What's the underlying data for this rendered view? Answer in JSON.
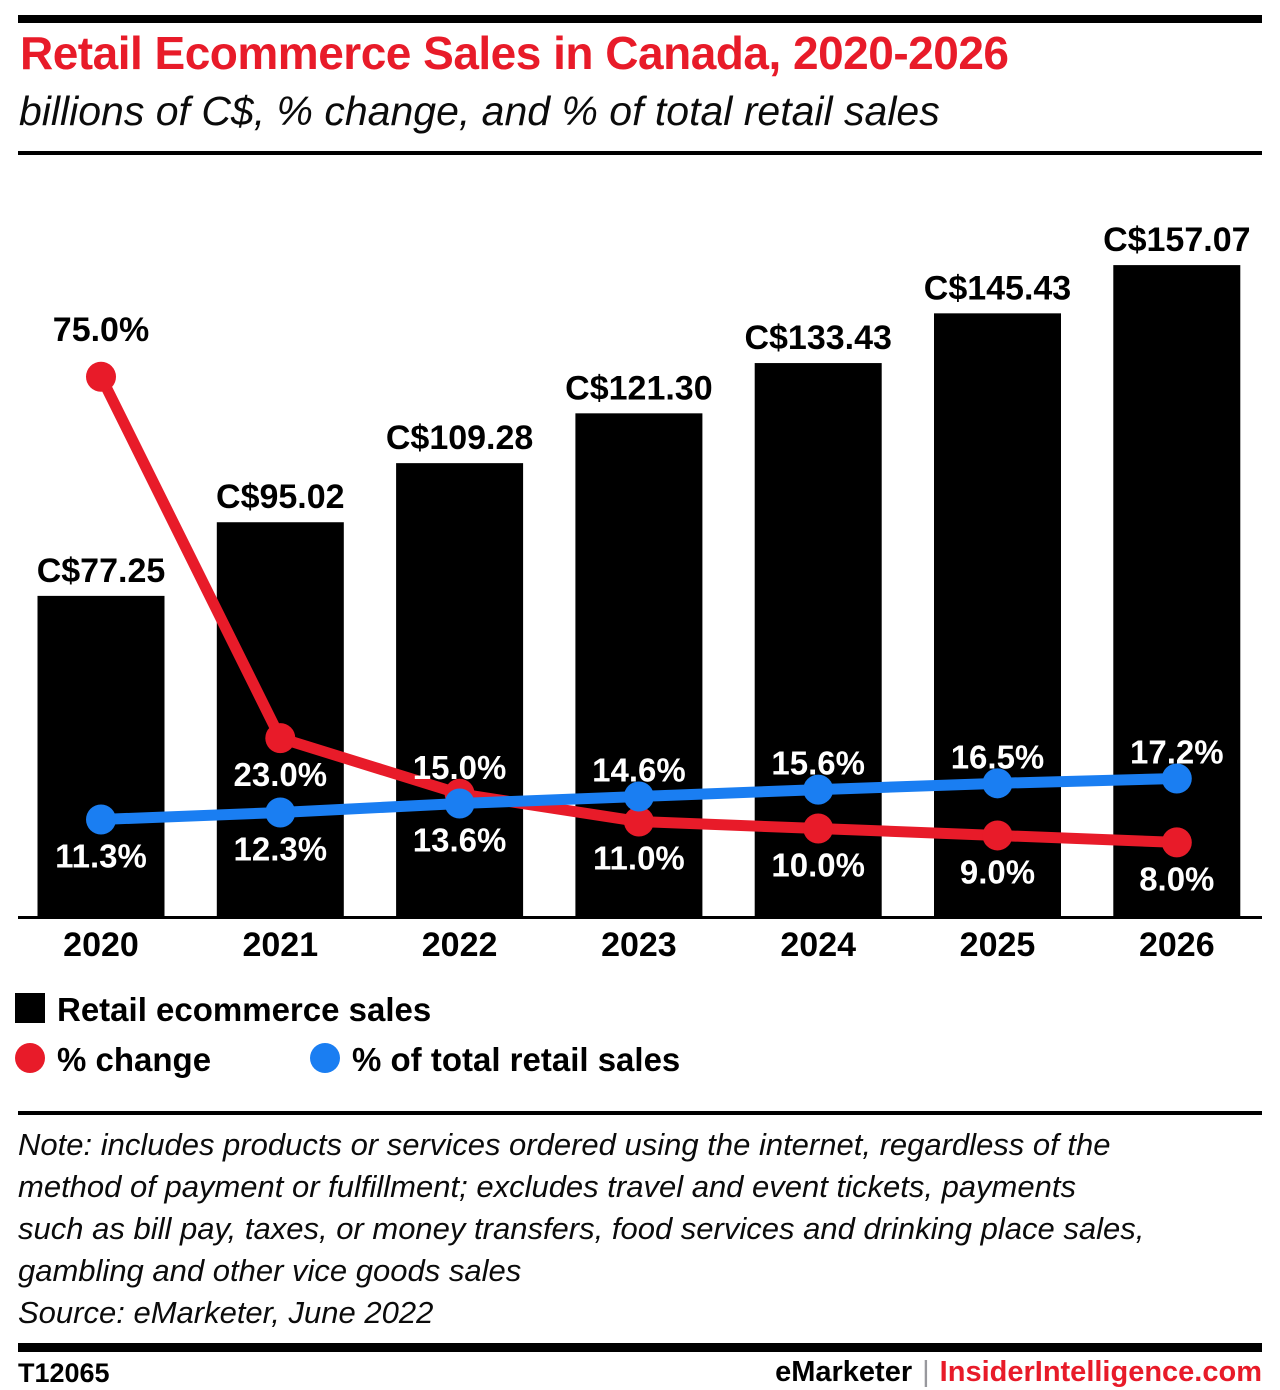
{
  "header": {
    "title": "Retail Ecommerce Sales in Canada, 2020-2026",
    "subtitle": "billions of C$, % change, and % of total retail sales"
  },
  "colors": {
    "bar_black": "#000000",
    "line_red": "#e81b29",
    "line_blue": "#1a7ef2",
    "label_white": "#ffffff"
  },
  "chart_data": {
    "type": "bar",
    "categories": [
      "2020",
      "2021",
      "2022",
      "2023",
      "2024",
      "2025",
      "2026"
    ],
    "series": [
      {
        "name": "Retail ecommerce sales",
        "type": "bar",
        "unit": "billions of C$",
        "color": "#000000",
        "values": [
          77.25,
          95.02,
          109.28,
          121.3,
          133.43,
          145.43,
          157.07
        ],
        "labels": [
          "C$77.25",
          "C$95.02",
          "C$109.28",
          "C$121.30",
          "C$133.43",
          "C$145.43",
          "C$157.07"
        ]
      },
      {
        "name": "% change",
        "type": "line",
        "unit": "%",
        "color": "#e81b29",
        "values": [
          75.0,
          23.0,
          15.0,
          11.0,
          10.0,
          9.0,
          8.0
        ],
        "labels": [
          "75.0%",
          "23.0%",
          "15.0%",
          "11.0%",
          "10.0%",
          "9.0%",
          "8.0%"
        ]
      },
      {
        "name": "% of total retail sales",
        "type": "line",
        "unit": "%",
        "color": "#1a7ef2",
        "values": [
          11.3,
          12.3,
          13.6,
          14.6,
          15.6,
          16.5,
          17.2
        ],
        "labels": [
          "11.3%",
          "12.3%",
          "13.6%",
          "14.6%",
          "15.6%",
          "16.5%",
          "17.2%"
        ]
      }
    ],
    "title": "Retail Ecommerce Sales in Canada, 2020-2026",
    "xlabel": "",
    "ylabel": "",
    "grid": false,
    "legend_position": "bottom"
  },
  "note": {
    "lines": [
      "Note: includes products or services ordered using the internet, regardless of the",
      "method of payment or fulfillment; excludes travel and event tickets, payments",
      "such as bill pay, taxes, or money transfers, food services and drinking place sales,",
      "gambling and other vice goods sales"
    ],
    "source": "Source: eMarketer, June 2022"
  },
  "footer": {
    "chart_id": "T12065",
    "brand": "eMarketer",
    "separator": "|",
    "site": "InsiderIntelligence.com"
  }
}
